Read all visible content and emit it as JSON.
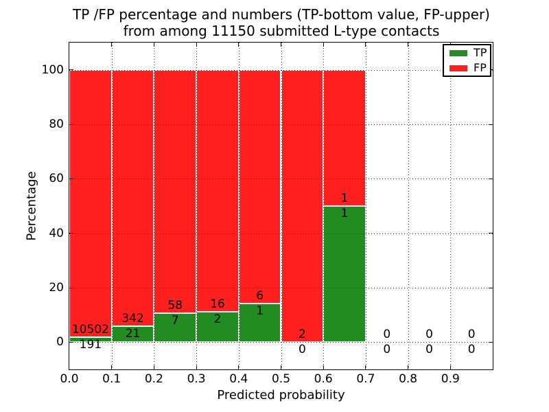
{
  "chart_data": {
    "type": "bar",
    "stacked": true,
    "title": "TP /FP percentage and numbers (TP-bottom value, FP-upper)\nfrom among 11150 submitted L-type contacts",
    "xlabel": "Predicted probability",
    "ylabel": "Percentage",
    "xlim": [
      0.0,
      1.0
    ],
    "ylim": [
      -10,
      110
    ],
    "bin_width": 0.1,
    "bins": [
      0.0,
      0.1,
      0.2,
      0.3,
      0.4,
      0.5,
      0.6,
      0.7,
      0.8,
      0.9
    ],
    "normalization": "each bin stacked to 100% of its TP+FP total",
    "series": [
      {
        "name": "TP",
        "color": "#228b22",
        "counts": [
          191,
          21,
          7,
          2,
          1,
          0,
          1,
          0,
          0,
          0
        ]
      },
      {
        "name": "FP",
        "color": "#ff1f1f",
        "counts": [
          10502,
          342,
          58,
          16,
          6,
          2,
          1,
          0,
          0,
          0
        ]
      }
    ],
    "tp_percent": [
      1.786,
      5.785,
      10.769,
      11.111,
      14.286,
      0,
      50,
      null,
      null,
      null
    ],
    "fp_percent": [
      98.214,
      94.215,
      89.231,
      88.889,
      85.714,
      100,
      50,
      null,
      null,
      null
    ],
    "xticks": [
      {
        "label": "0.0",
        "value": 0.0
      },
      {
        "label": "0.1",
        "value": 0.1
      },
      {
        "label": "0.2",
        "value": 0.2
      },
      {
        "label": "0.3",
        "value": 0.3
      },
      {
        "label": "0.4",
        "value": 0.4
      },
      {
        "label": "0.5",
        "value": 0.5
      },
      {
        "label": "0.6",
        "value": 0.6
      },
      {
        "label": "0.7",
        "value": 0.7
      },
      {
        "label": "0.8",
        "value": 0.8
      },
      {
        "label": "0.9",
        "value": 0.9
      }
    ],
    "yticks": [
      {
        "label": "0",
        "value": 0
      },
      {
        "label": "20",
        "value": 20
      },
      {
        "label": "40",
        "value": 40
      },
      {
        "label": "60",
        "value": 60
      },
      {
        "label": "80",
        "value": 80
      },
      {
        "label": "100",
        "value": 100
      }
    ],
    "grid": true,
    "grid_style": "dotted",
    "bar_edge_color": "#ffffff",
    "legend": {
      "position": "upper right",
      "entries": [
        {
          "label": "TP",
          "color": "#228b22"
        },
        {
          "label": "FP",
          "color": "#ff1f1f"
        }
      ]
    }
  }
}
